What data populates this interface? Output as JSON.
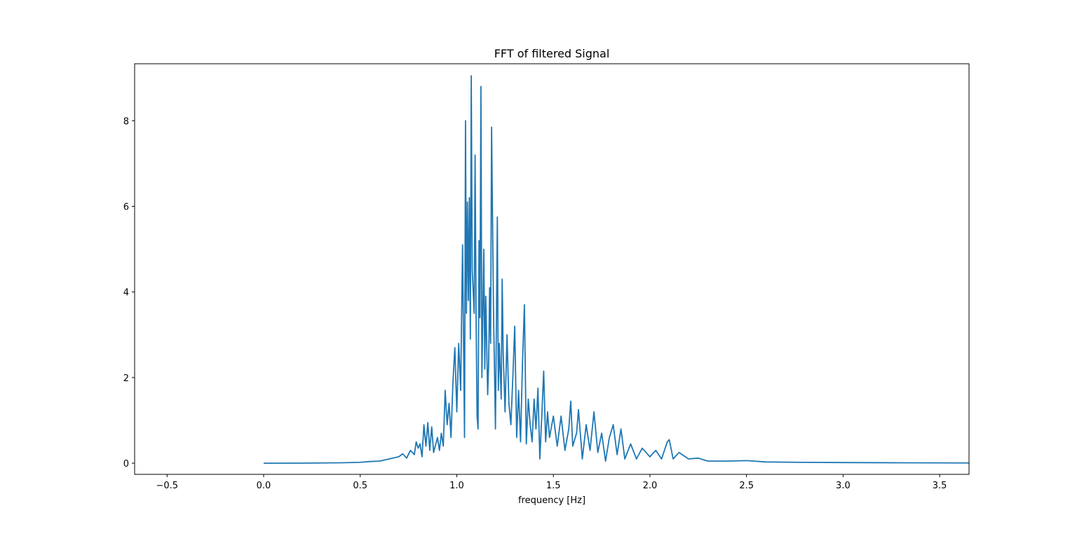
{
  "chart_data": {
    "type": "line",
    "title": "FFT of filtered Signal",
    "xlabel": "frequency [Hz]",
    "color": "#1f77b4",
    "x": [
      0.0,
      0.2,
      0.4,
      0.5,
      0.55,
      0.6,
      0.65,
      0.7,
      0.72,
      0.74,
      0.76,
      0.78,
      0.79,
      0.8,
      0.81,
      0.82,
      0.83,
      0.84,
      0.85,
      0.86,
      0.87,
      0.88,
      0.9,
      0.91,
      0.92,
      0.93,
      0.94,
      0.95,
      0.96,
      0.97,
      0.98,
      0.99,
      1.0,
      1.01,
      1.02,
      1.025,
      1.03,
      1.04,
      1.045,
      1.05,
      1.055,
      1.06,
      1.065,
      1.07,
      1.075,
      1.08,
      1.09,
      1.095,
      1.1,
      1.105,
      1.11,
      1.115,
      1.12,
      1.125,
      1.13,
      1.14,
      1.145,
      1.15,
      1.16,
      1.165,
      1.17,
      1.175,
      1.18,
      1.19,
      1.2,
      1.21,
      1.215,
      1.22,
      1.23,
      1.235,
      1.24,
      1.25,
      1.26,
      1.27,
      1.28,
      1.29,
      1.3,
      1.31,
      1.32,
      1.33,
      1.34,
      1.35,
      1.36,
      1.37,
      1.38,
      1.39,
      1.4,
      1.41,
      1.42,
      1.43,
      1.44,
      1.45,
      1.46,
      1.47,
      1.48,
      1.5,
      1.52,
      1.54,
      1.56,
      1.58,
      1.59,
      1.6,
      1.62,
      1.63,
      1.65,
      1.67,
      1.69,
      1.71,
      1.73,
      1.75,
      1.77,
      1.79,
      1.81,
      1.83,
      1.85,
      1.87,
      1.9,
      1.93,
      1.96,
      2.0,
      2.03,
      2.06,
      2.09,
      2.1,
      2.12,
      2.15,
      2.2,
      2.25,
      2.3,
      2.4,
      2.5,
      2.6,
      2.8,
      3.0,
      3.3,
      3.7
    ],
    "values": [
      0,
      0.002,
      0.01,
      0.02,
      0.04,
      0.05,
      0.1,
      0.15,
      0.22,
      0.12,
      0.3,
      0.2,
      0.5,
      0.35,
      0.45,
      0.15,
      0.9,
      0.4,
      0.95,
      0.3,
      0.85,
      0.25,
      0.6,
      0.3,
      0.7,
      0.4,
      1.7,
      0.9,
      1.4,
      0.6,
      1.9,
      2.7,
      1.2,
      2.8,
      1.7,
      3.5,
      5.1,
      0.6,
      8.0,
      3.5,
      6.1,
      3.8,
      6.2,
      2.9,
      9.05,
      4.5,
      3.5,
      7.2,
      3.4,
      1.1,
      0.8,
      5.2,
      3.4,
      8.8,
      2.0,
      5.0,
      2.2,
      3.9,
      1.6,
      2.3,
      4.1,
      2.8,
      7.85,
      3.6,
      0.8,
      5.75,
      1.7,
      2.8,
      1.5,
      4.3,
      2.6,
      1.2,
      3.0,
      1.4,
      0.9,
      2.0,
      3.2,
      0.6,
      1.7,
      0.5,
      2.3,
      3.7,
      0.45,
      1.5,
      0.9,
      0.5,
      1.5,
      0.8,
      1.75,
      0.1,
      1.1,
      2.15,
      0.5,
      1.2,
      0.6,
      1.1,
      0.4,
      1.1,
      0.3,
      0.8,
      1.45,
      0.4,
      0.7,
      1.25,
      0.1,
      0.9,
      0.3,
      1.2,
      0.25,
      0.7,
      0.05,
      0.6,
      0.9,
      0.2,
      0.8,
      0.1,
      0.45,
      0.1,
      0.35,
      0.15,
      0.3,
      0.1,
      0.5,
      0.55,
      0.1,
      0.25,
      0.1,
      0.12,
      0.05,
      0.05,
      0.06,
      0.03,
      0.02,
      0.015,
      0.01,
      0.005
    ],
    "xlim": [
      -0.668,
      3.652
    ],
    "xticks": [
      {
        "value": -0.5,
        "label": "−0.5"
      },
      {
        "value": 0,
        "label": "0.0"
      },
      0.5,
      {
        "value": 1,
        "label": "1.0"
      },
      1.5,
      {
        "value": 2,
        "label": "2.0"
      },
      2.5,
      {
        "value": 3,
        "label": "3.0"
      },
      3.5
    ],
    "ylim": [
      -0.26,
      9.33
    ],
    "yticks": [
      0,
      2,
      4,
      6,
      8
    ]
  }
}
